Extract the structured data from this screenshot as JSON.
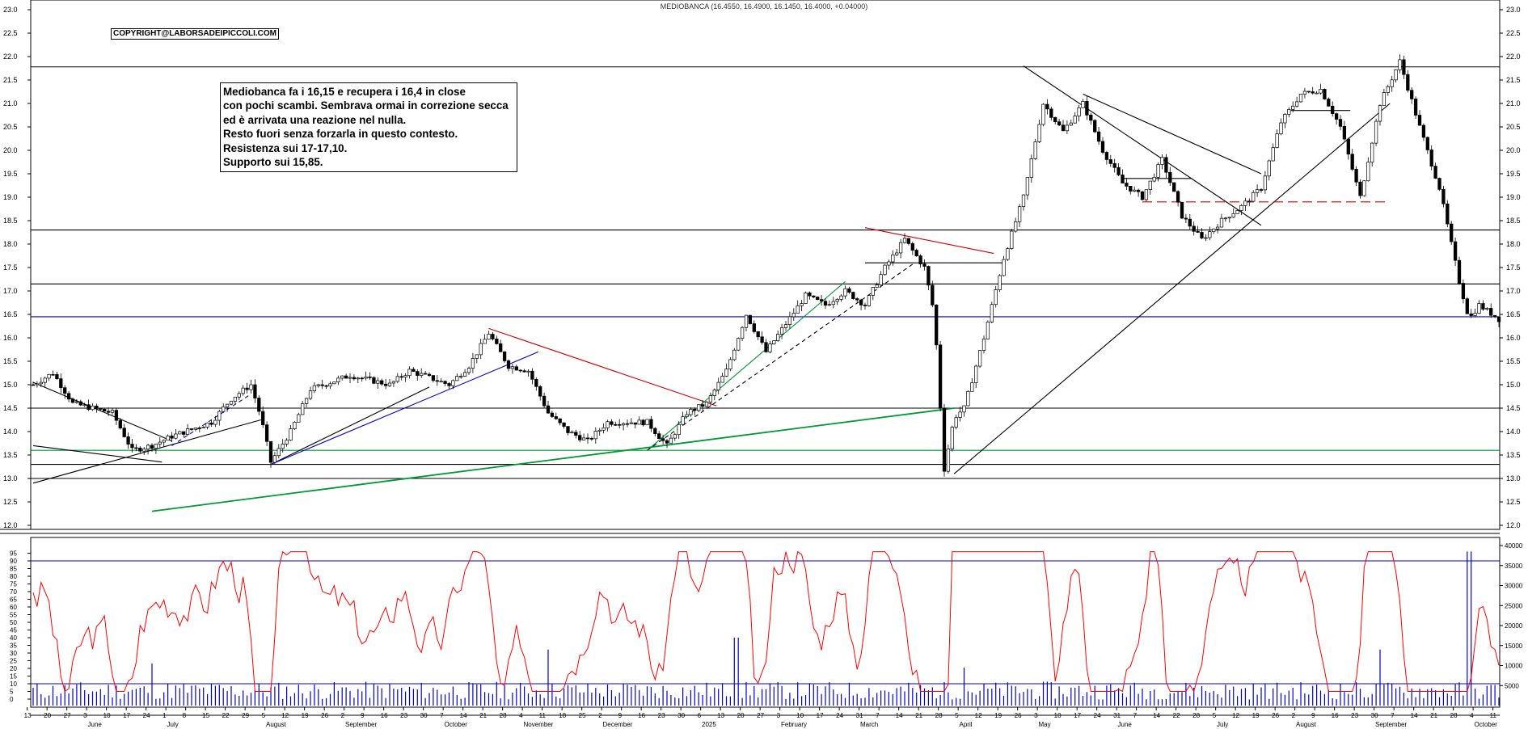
{
  "header": "MEDIOBANCA (16.4550, 16.4900, 16.1450, 16.4000, +0.04000)",
  "copyright": "COPYRIGHT@LABORSADEIPICCOLI.COM",
  "note": [
    "Mediobanca fa i 16,15 e recupera i 16,4 in close",
    "con pochi scambi. Sembrava ormai in correzione secca",
    "ed è arrivata una reazione nel nulla.",
    "Resto fuori senza forzarla in questo contesto.",
    "Resistenza sui 17-17,10.",
    "Supporto sui 15,85."
  ],
  "chart_data": [
    {
      "type": "candlestick",
      "symbol": "MEDIOBANCA",
      "last_bar": {
        "open": 16.455,
        "high": 16.49,
        "low": 16.145,
        "close": 16.4,
        "change": 0.04
      },
      "ylim": [
        12.0,
        23.0
      ],
      "y_ticks": [
        12.0,
        12.5,
        13.0,
        13.5,
        14.0,
        14.5,
        15.0,
        15.5,
        16.0,
        16.5,
        17.0,
        17.5,
        18.0,
        18.5,
        19.0,
        19.5,
        20.0,
        20.5,
        21.0,
        21.5,
        22.0,
        22.5,
        23.0
      ],
      "x_tick_labels": [
        "13",
        "20",
        "27",
        "3",
        "10",
        "17",
        "24",
        "1",
        "8",
        "15",
        "22",
        "29",
        "5",
        "12",
        "19",
        "26",
        "2",
        "9",
        "16",
        "23",
        "30",
        "7",
        "14",
        "21",
        "28",
        "4",
        "11",
        "18",
        "25",
        "2",
        "9",
        "16",
        "23",
        "30",
        "6",
        "13",
        "20",
        "27",
        "3",
        "10",
        "17",
        "24",
        "31",
        "7",
        "14",
        "21",
        "28",
        "5",
        "12",
        "19",
        "26",
        "3",
        "10",
        "17",
        "24",
        "31",
        "7",
        "14",
        "22",
        "28",
        "5",
        "12",
        "19",
        "26",
        "2",
        "9",
        "16",
        "23",
        "30",
        "7",
        "14",
        "21",
        "28",
        "4",
        "11",
        "18",
        "25",
        "1",
        "8",
        "15",
        "22",
        "29",
        "6",
        "13",
        "20",
        "2"
      ],
      "month_labels": [
        {
          "label": "June",
          "week": 3
        },
        {
          "label": "July",
          "week": 7
        },
        {
          "label": "August",
          "week": 12
        },
        {
          "label": "September",
          "week": 16
        },
        {
          "label": "October",
          "week": 21
        },
        {
          "label": "November",
          "week": 25
        },
        {
          "label": "December",
          "week": 29
        },
        {
          "label": "2025",
          "week": 34
        },
        {
          "label": "February",
          "week": 38
        },
        {
          "label": "March",
          "week": 42
        },
        {
          "label": "April",
          "week": 47
        },
        {
          "label": "May",
          "week": 51
        },
        {
          "label": "June",
          "week": 55
        },
        {
          "label": "July",
          "week": 60
        },
        {
          "label": "August",
          "week": 64
        },
        {
          "label": "September",
          "week": 68
        },
        {
          "label": "October",
          "week": 73
        }
      ],
      "key_points": [
        {
          "week": 0,
          "price": 15.0
        },
        {
          "week": 1,
          "price": 15.25
        },
        {
          "week": 2,
          "price": 14.6
        },
        {
          "week": 4,
          "price": 14.4
        },
        {
          "week": 5,
          "price": 13.6
        },
        {
          "week": 6,
          "price": 13.7
        },
        {
          "week": 7,
          "price": 13.9
        },
        {
          "week": 9,
          "price": 14.2
        },
        {
          "week": 10,
          "price": 14.7
        },
        {
          "week": 11,
          "price": 15.0
        },
        {
          "week": 11.5,
          "price": 14.3
        },
        {
          "week": 12,
          "price": 13.35
        },
        {
          "week": 13,
          "price": 14.0
        },
        {
          "week": 14,
          "price": 14.9
        },
        {
          "week": 16,
          "price": 15.2
        },
        {
          "week": 18,
          "price": 15.0
        },
        {
          "week": 19,
          "price": 15.3
        },
        {
          "week": 21,
          "price": 15.0
        },
        {
          "week": 22,
          "price": 15.4
        },
        {
          "week": 23,
          "price": 16.1
        },
        {
          "week": 24,
          "price": 15.4
        },
        {
          "week": 25,
          "price": 15.3
        },
        {
          "week": 26,
          "price": 14.4
        },
        {
          "week": 27,
          "price": 14.0
        },
        {
          "week": 28,
          "price": 13.8
        },
        {
          "week": 29,
          "price": 14.2
        },
        {
          "week": 31,
          "price": 14.2
        },
        {
          "week": 32,
          "price": 13.7
        },
        {
          "week": 33,
          "price": 14.4
        },
        {
          "week": 34,
          "price": 14.6
        },
        {
          "week": 35,
          "price": 15.3
        },
        {
          "week": 36,
          "price": 16.5
        },
        {
          "week": 37,
          "price": 15.7
        },
        {
          "week": 38,
          "price": 16.3
        },
        {
          "week": 39,
          "price": 16.9
        },
        {
          "week": 40,
          "price": 16.7
        },
        {
          "week": 41,
          "price": 17.0
        },
        {
          "week": 42,
          "price": 16.7
        },
        {
          "week": 43,
          "price": 17.5
        },
        {
          "week": 44,
          "price": 18.1
        },
        {
          "week": 45,
          "price": 17.5
        },
        {
          "week": 45.5,
          "price": 16.5
        },
        {
          "week": 46,
          "price": 13.2
        },
        {
          "week": 46.5,
          "price": 14.3
        },
        {
          "week": 47,
          "price": 14.5
        },
        {
          "week": 48,
          "price": 16.0
        },
        {
          "week": 49,
          "price": 17.7
        },
        {
          "week": 50,
          "price": 19.0
        },
        {
          "week": 51,
          "price": 21.0
        },
        {
          "week": 52,
          "price": 20.4
        },
        {
          "week": 53,
          "price": 21.0
        },
        {
          "week": 54,
          "price": 20.0
        },
        {
          "week": 55,
          "price": 19.3
        },
        {
          "week": 56,
          "price": 19.0
        },
        {
          "week": 57,
          "price": 19.8
        },
        {
          "week": 58,
          "price": 18.6
        },
        {
          "week": 59,
          "price": 18.1
        },
        {
          "week": 60,
          "price": 18.5
        },
        {
          "week": 61,
          "price": 18.8
        },
        {
          "week": 62,
          "price": 19.2
        },
        {
          "week": 63,
          "price": 20.6
        },
        {
          "week": 64,
          "price": 21.2
        },
        {
          "week": 65,
          "price": 21.3
        },
        {
          "week": 66,
          "price": 20.5
        },
        {
          "week": 67,
          "price": 19.0
        },
        {
          "week": 68,
          "price": 21.0
        },
        {
          "week": 69,
          "price": 21.9
        },
        {
          "week": 70,
          "price": 20.5
        },
        {
          "week": 71,
          "price": 19.2
        },
        {
          "week": 72,
          "price": 17.2
        },
        {
          "week": 72.5,
          "price": 16.4
        },
        {
          "week": 73,
          "price": 16.7
        },
        {
          "week": 74,
          "price": 16.4
        }
      ],
      "horizontal_lines": [
        {
          "price": 21.78,
          "color": "#000000",
          "style": "solid"
        },
        {
          "price": 18.3,
          "color": "#000000",
          "style": "solid"
        },
        {
          "price": 17.15,
          "color": "#000000",
          "style": "solid"
        },
        {
          "price": 16.45,
          "color": "#0000cc",
          "style": "solid"
        },
        {
          "price": 14.5,
          "color": "#000000",
          "style": "solid"
        },
        {
          "price": 13.6,
          "color": "#009933",
          "style": "solid"
        },
        {
          "price": 13.3,
          "color": "#000000",
          "style": "solid"
        },
        {
          "price": 13.0,
          "color": "#000000",
          "style": "solid"
        }
      ],
      "trend_lines": [
        {
          "from": {
            "week": 0,
            "price": 15.05
          },
          "to": {
            "week": 7,
            "price": 13.8
          },
          "color": "#000000",
          "style": "solid"
        },
        {
          "from": {
            "week": 0,
            "price": 13.7
          },
          "to": {
            "week": 6.5,
            "price": 13.35
          },
          "color": "#000000",
          "style": "solid"
        },
        {
          "from": {
            "week": 0,
            "price": 12.9
          },
          "to": {
            "week": 11.5,
            "price": 14.25
          },
          "color": "#000000",
          "style": "solid"
        },
        {
          "from": {
            "week": 7,
            "price": 13.7
          },
          "to": {
            "week": 11,
            "price": 14.8
          },
          "color": "#0000cc",
          "style": "dashed"
        },
        {
          "from": {
            "week": 12,
            "price": 13.3
          },
          "to": {
            "week": 20,
            "price": 14.95
          },
          "color": "#000000",
          "style": "solid"
        },
        {
          "from": {
            "week": 12,
            "price": 13.3
          },
          "to": {
            "week": 25.5,
            "price": 15.7
          },
          "color": "#0000cc",
          "style": "solid"
        },
        {
          "from": {
            "week": 6,
            "price": 12.3
          },
          "to": {
            "week": 46.5,
            "price": 14.5
          },
          "color": "#009933",
          "style": "solid"
        },
        {
          "from": {
            "week": 23,
            "price": 16.2
          },
          "to": {
            "week": 34.5,
            "price": 14.55
          },
          "color": "#cc0000",
          "style": "solid"
        },
        {
          "from": {
            "week": 31,
            "price": 13.6
          },
          "to": {
            "week": 41,
            "price": 17.2
          },
          "color": "#009933",
          "style": "solid"
        },
        {
          "from": {
            "week": 31,
            "price": 13.6
          },
          "to": {
            "week": 44.5,
            "price": 17.6
          },
          "color": "#000000",
          "style": "dashed"
        },
        {
          "from": {
            "week": 42,
            "price": 18.35
          },
          "to": {
            "week": 48.5,
            "price": 17.8
          },
          "color": "#cc0000",
          "style": "solid"
        },
        {
          "from": {
            "week": 42,
            "price": 17.6
          },
          "to": {
            "week": 49,
            "price": 17.6
          },
          "color": "#000000",
          "style": "solid"
        },
        {
          "from": {
            "week": 46.5,
            "price": 13.1
          },
          "to": {
            "week": 68.5,
            "price": 21.0
          },
          "color": "#000000",
          "style": "solid"
        },
        {
          "from": {
            "week": 50,
            "price": 21.8
          },
          "to": {
            "week": 62,
            "price": 18.4
          },
          "color": "#000000",
          "style": "solid"
        },
        {
          "from": {
            "week": 53,
            "price": 21.2
          },
          "to": {
            "week": 62,
            "price": 19.5
          },
          "color": "#000000",
          "style": "solid"
        },
        {
          "from": {
            "week": 55,
            "price": 19.4
          },
          "to": {
            "week": 58.5,
            "price": 19.4
          },
          "color": "#000000",
          "style": "solid"
        },
        {
          "from": {
            "week": 56,
            "price": 18.9
          },
          "to": {
            "week": 68.5,
            "price": 18.9
          },
          "color": "#cc0000",
          "style": "dashed"
        },
        {
          "from": {
            "week": 63.5,
            "price": 20.85
          },
          "to": {
            "week": 66.5,
            "price": 20.85
          },
          "color": "#000000",
          "style": "solid"
        }
      ]
    },
    {
      "type": "line+bar",
      "oscillator": {
        "ylim": [
          0,
          100
        ],
        "y_ticks": [
          0,
          5,
          10,
          15,
          20,
          25,
          30,
          35,
          40,
          45,
          50,
          55,
          60,
          65,
          70,
          75,
          80,
          85,
          90,
          95
        ],
        "levels": [
          {
            "value": 90,
            "color": "#0000cc"
          },
          {
            "value": 10,
            "color": "#0000cc"
          }
        ],
        "color": "#ff0000",
        "last_value": 22
      },
      "volume": {
        "ylim": [
          0,
          40000
        ],
        "y_ticks": [
          5000,
          10000,
          15000,
          20000,
          25000,
          30000,
          35000,
          40000
        ],
        "color": "#0000cc",
        "spikes": [
          {
            "week": 6,
            "value": 10500
          },
          {
            "week": 26,
            "value": 14000
          },
          {
            "week": 35.5,
            "value": 17000
          },
          {
            "week": 47,
            "value": 9500
          },
          {
            "week": 68,
            "value": 14000
          },
          {
            "week": 72.5,
            "value": 38500
          }
        ]
      }
    }
  ]
}
